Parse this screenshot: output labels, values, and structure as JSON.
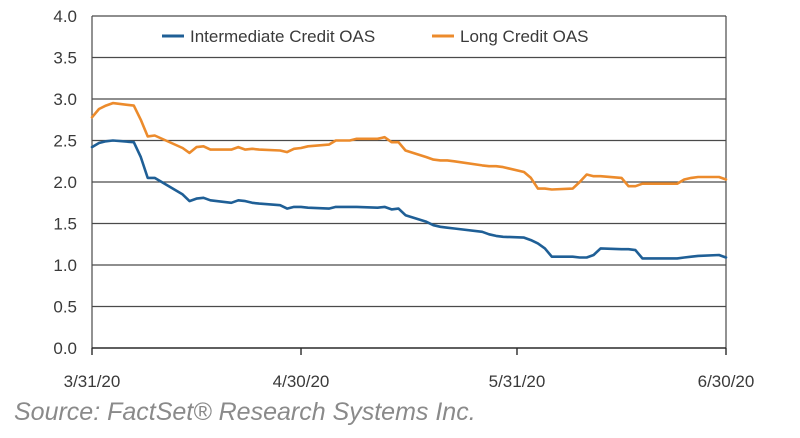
{
  "chart_data": {
    "type": "line",
    "title": "",
    "xlabel": "",
    "ylabel": "",
    "x_tick_labels": [
      "3/31/20",
      "4/30/20",
      "5/31/20",
      "6/30/20"
    ],
    "y_tick_labels": [
      "0.0",
      "0.5",
      "1.0",
      "1.5",
      "2.0",
      "2.5",
      "3.0",
      "3.5",
      "4.0"
    ],
    "ylim": [
      0,
      4.0
    ],
    "grid": "horizontal",
    "legend_position": "top",
    "x": [
      "3/31/20",
      "4/1/20",
      "4/2/20",
      "4/3/20",
      "4/6/20",
      "4/7/20",
      "4/8/20",
      "4/9/20",
      "4/13/20",
      "4/14/20",
      "4/15/20",
      "4/16/20",
      "4/17/20",
      "4/20/20",
      "4/21/20",
      "4/22/20",
      "4/23/20",
      "4/24/20",
      "4/27/20",
      "4/28/20",
      "4/29/20",
      "4/30/20",
      "5/1/20",
      "5/4/20",
      "5/5/20",
      "5/6/20",
      "5/7/20",
      "5/8/20",
      "5/11/20",
      "5/12/20",
      "5/13/20",
      "5/14/20",
      "5/15/20",
      "5/18/20",
      "5/19/20",
      "5/20/20",
      "5/21/20",
      "5/22/20",
      "5/26/20",
      "5/27/20",
      "5/28/20",
      "5/29/20",
      "6/1/20",
      "6/2/20",
      "6/3/20",
      "6/4/20",
      "6/5/20",
      "6/8/20",
      "6/9/20",
      "6/10/20",
      "6/11/20",
      "6/12/20",
      "6/15/20",
      "6/16/20",
      "6/17/20",
      "6/18/20",
      "6/19/20",
      "6/22/20",
      "6/23/20",
      "6/24/20",
      "6/25/20",
      "6/26/20",
      "6/29/20",
      "6/30/20"
    ],
    "series": [
      {
        "name": "Intermediate Credit OAS",
        "color": "#1f5f96",
        "values": [
          2.42,
          2.47,
          2.49,
          2.5,
          2.48,
          2.3,
          2.05,
          2.05,
          1.85,
          1.77,
          1.8,
          1.81,
          1.78,
          1.75,
          1.78,
          1.77,
          1.75,
          1.74,
          1.72,
          1.68,
          1.7,
          1.7,
          1.69,
          1.68,
          1.7,
          1.7,
          1.7,
          1.7,
          1.69,
          1.7,
          1.67,
          1.68,
          1.6,
          1.52,
          1.48,
          1.46,
          1.45,
          1.44,
          1.4,
          1.37,
          1.35,
          1.34,
          1.33,
          1.3,
          1.26,
          1.2,
          1.1,
          1.1,
          1.09,
          1.09,
          1.12,
          1.2,
          1.19,
          1.19,
          1.18,
          1.08,
          1.08,
          1.08,
          1.08,
          1.09,
          1.1,
          1.11,
          1.12,
          1.09
        ]
      },
      {
        "name": "Long Credit OAS",
        "color": "#ec8b2c",
        "values": [
          2.78,
          2.88,
          2.92,
          2.95,
          2.92,
          2.75,
          2.55,
          2.56,
          2.41,
          2.35,
          2.42,
          2.43,
          2.39,
          2.39,
          2.42,
          2.39,
          2.4,
          2.39,
          2.38,
          2.36,
          2.4,
          2.41,
          2.43,
          2.45,
          2.5,
          2.5,
          2.5,
          2.52,
          2.52,
          2.54,
          2.48,
          2.48,
          2.38,
          2.3,
          2.27,
          2.26,
          2.26,
          2.25,
          2.2,
          2.19,
          2.19,
          2.18,
          2.12,
          2.05,
          1.92,
          1.92,
          1.91,
          1.92,
          2.0,
          2.09,
          2.07,
          2.07,
          2.05,
          1.95,
          1.95,
          1.98,
          1.98,
          1.98,
          1.98,
          2.03,
          2.05,
          2.06,
          2.06,
          2.03
        ]
      }
    ]
  },
  "source_text": "Source: FactSet® Research Systems Inc."
}
